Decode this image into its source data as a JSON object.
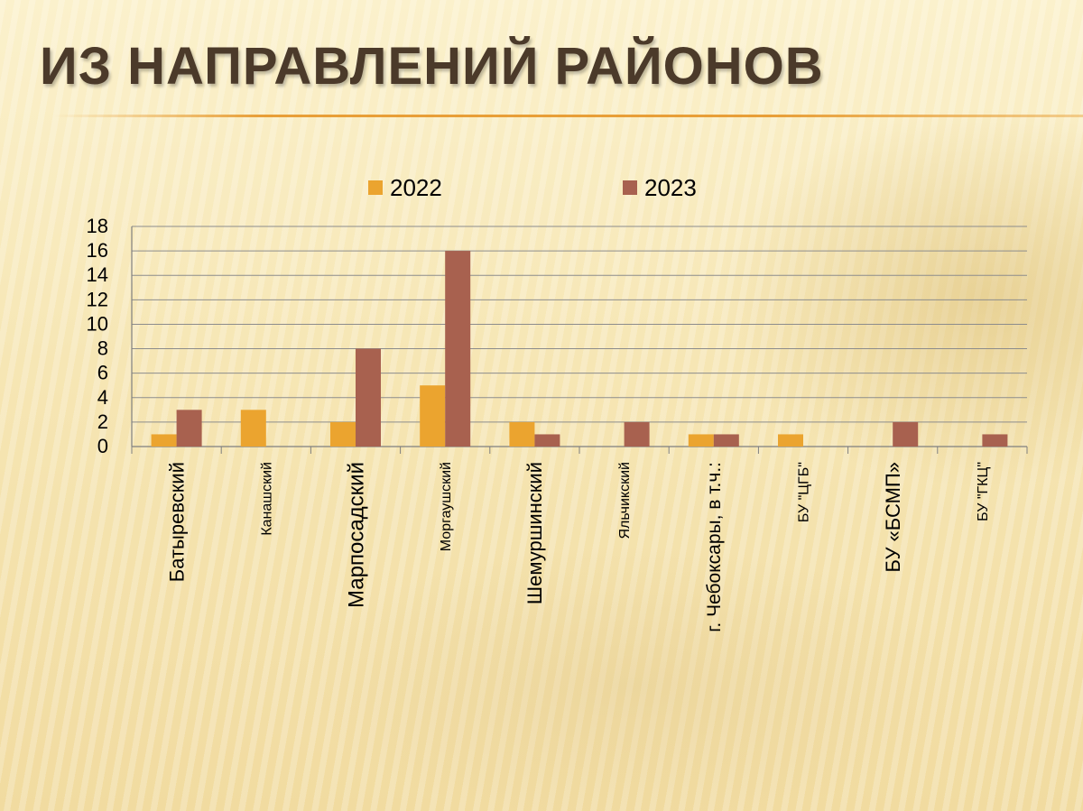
{
  "slide": {
    "title": "Из направлений районов"
  },
  "colors": {
    "series_2022": "#eba42f",
    "series_2023": "#a8614f",
    "title": "#4b3a2a",
    "accent_rule": "#e6962a"
  },
  "chart_data": {
    "type": "bar",
    "title": "",
    "xlabel": "",
    "ylabel": "",
    "ylim": [
      0,
      18
    ],
    "yticks": [
      0,
      2,
      4,
      6,
      8,
      10,
      12,
      14,
      16,
      18
    ],
    "grid": true,
    "legend_position": "top",
    "categories": [
      "Батыревский",
      "Канашский",
      "Марпосадский",
      "Моргаушский",
      "Шемуршинский",
      "Яльчикский",
      "г. Чебоксары, в т.ч.:",
      "БУ \"ЦГБ\"",
      "БУ «БСМП»",
      "БУ \"ГКЦ\""
    ],
    "series": [
      {
        "name": "2022",
        "values": [
          1,
          3,
          2,
          5,
          2,
          0,
          1,
          1,
          0,
          0
        ]
      },
      {
        "name": "2023",
        "values": [
          3,
          0,
          8,
          16,
          1,
          2,
          1,
          0,
          2,
          1
        ]
      }
    ]
  }
}
